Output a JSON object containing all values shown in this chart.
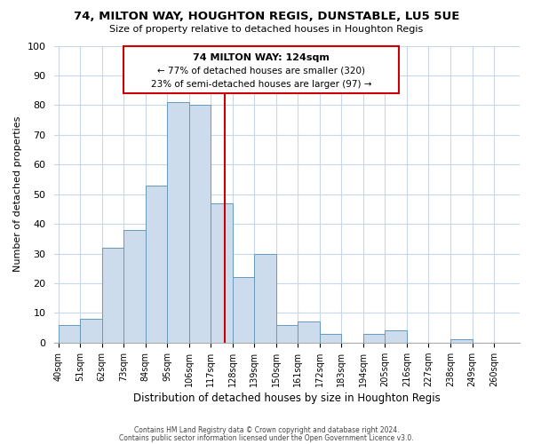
{
  "title": "74, MILTON WAY, HOUGHTON REGIS, DUNSTABLE, LU5 5UE",
  "subtitle": "Size of property relative to detached houses in Houghton Regis",
  "xlabel": "Distribution of detached houses by size in Houghton Regis",
  "ylabel": "Number of detached properties",
  "bin_labels": [
    "40sqm",
    "51sqm",
    "62sqm",
    "73sqm",
    "84sqm",
    "95sqm",
    "106sqm",
    "117sqm",
    "128sqm",
    "139sqm",
    "150sqm",
    "161sqm",
    "172sqm",
    "183sqm",
    "194sqm",
    "205sqm",
    "216sqm",
    "227sqm",
    "238sqm",
    "249sqm",
    "260sqm"
  ],
  "bar_values": [
    6,
    8,
    32,
    38,
    53,
    81,
    80,
    47,
    22,
    30,
    6,
    7,
    3,
    0,
    3,
    4,
    0,
    0,
    1,
    0,
    0
  ],
  "bin_edges": [
    40,
    51,
    62,
    73,
    84,
    95,
    106,
    117,
    128,
    139,
    150,
    161,
    172,
    183,
    194,
    205,
    216,
    227,
    238,
    249,
    260,
    271
  ],
  "bar_color": "#ccdcec",
  "bar_edge_color": "#6699bb",
  "vline_x": 124,
  "vline_color": "#cc0000",
  "annotation_title": "74 MILTON WAY: 124sqm",
  "annotation_line1": "← 77% of detached houses are smaller (320)",
  "annotation_line2": "23% of semi-detached houses are larger (97) →",
  "annotation_box_edgecolor": "#cc0000",
  "ylim": [
    0,
    100
  ],
  "yticks": [
    0,
    10,
    20,
    30,
    40,
    50,
    60,
    70,
    80,
    90,
    100
  ],
  "footer1": "Contains HM Land Registry data © Crown copyright and database right 2024.",
  "footer2": "Contains public sector information licensed under the Open Government Licence v3.0.",
  "bg_color": "#ffffff",
  "grid_color": "#c8d8e8"
}
